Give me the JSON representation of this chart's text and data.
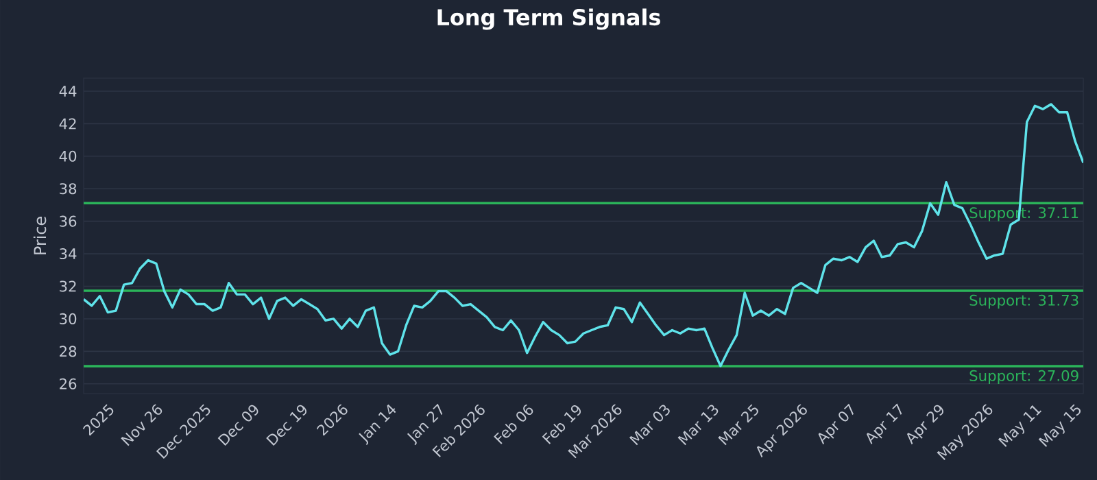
{
  "chart_data": {
    "type": "line",
    "title": "Long Term Signals",
    "ylabel": "Price",
    "categories": [
      null,
      null,
      null,
      "2025",
      null,
      null,
      null,
      null,
      null,
      "Nov 26",
      null,
      null,
      null,
      null,
      null,
      "Dec 2025",
      null,
      null,
      null,
      null,
      null,
      "Dec 09",
      null,
      null,
      null,
      null,
      null,
      "Dec 19",
      null,
      null,
      null,
      null,
      "2026",
      null,
      null,
      null,
      null,
      null,
      "Jan 14",
      null,
      null,
      null,
      null,
      null,
      "Jan 27",
      null,
      null,
      null,
      null,
      "Feb 2026",
      null,
      null,
      null,
      null,
      null,
      "Feb 06",
      null,
      null,
      null,
      null,
      null,
      "Feb 19",
      null,
      null,
      null,
      null,
      "Mar 2026",
      null,
      null,
      null,
      null,
      null,
      "Mar 03",
      null,
      null,
      null,
      null,
      null,
      "Mar 13",
      null,
      null,
      null,
      null,
      "Mar 25",
      null,
      null,
      null,
      null,
      null,
      "Apr 2026",
      null,
      null,
      null,
      null,
      null,
      "Apr 07",
      null,
      null,
      null,
      null,
      null,
      "Apr 17",
      null,
      null,
      null,
      null,
      "Apr 29",
      null,
      null,
      null,
      null,
      null,
      "May 2026",
      null,
      null,
      null,
      null,
      null,
      "May 11",
      null,
      null,
      null,
      null,
      "May 15",
      null
    ],
    "values": [
      31.2,
      30.8,
      31.4,
      30.4,
      30.5,
      32.1,
      32.2,
      33.1,
      33.6,
      33.4,
      31.7,
      30.7,
      31.8,
      31.5,
      30.9,
      30.9,
      30.5,
      30.7,
      32.2,
      31.5,
      31.5,
      30.9,
      31.3,
      30.0,
      31.1,
      31.3,
      30.8,
      31.2,
      30.9,
      30.6,
      29.9,
      30.0,
      29.4,
      30.0,
      29.5,
      30.5,
      30.7,
      28.5,
      27.8,
      28.0,
      29.6,
      30.8,
      30.7,
      31.1,
      31.7,
      31.7,
      31.3,
      30.8,
      30.9,
      30.5,
      30.1,
      29.5,
      29.3,
      29.9,
      29.3,
      27.9,
      28.9,
      29.8,
      29.3,
      29.0,
      28.5,
      28.6,
      29.1,
      29.3,
      29.5,
      29.6,
      30.7,
      30.6,
      29.8,
      31.0,
      30.3,
      29.6,
      29.0,
      29.3,
      29.1,
      29.4,
      29.3,
      29.4,
      28.2,
      27.1,
      28.1,
      29.0,
      31.6,
      30.2,
      30.5,
      30.2,
      30.6,
      30.3,
      31.9,
      32.2,
      31.9,
      31.6,
      33.3,
      33.7,
      33.6,
      33.8,
      33.5,
      34.4,
      34.8,
      33.8,
      33.9,
      34.6,
      34.7,
      34.4,
      35.4,
      37.1,
      36.4,
      38.4,
      37.0,
      36.8,
      35.8,
      34.7,
      33.7,
      33.9,
      34.0,
      35.8,
      36.1,
      42.1,
      43.1,
      42.9,
      43.2,
      42.7,
      42.7,
      40.9,
      39.6
    ],
    "color": "#5fe3ea",
    "ylim": [
      25.4,
      44.8
    ],
    "yticks": [
      26,
      28,
      30,
      32,
      34,
      36,
      38,
      40,
      42,
      44
    ],
    "grid": "y",
    "marker": "none",
    "line_style": "solid",
    "ref_lines": [
      {
        "axis": "y",
        "value": 37.11,
        "label": "Support: 37.11",
        "color": "#2bb45a"
      },
      {
        "axis": "y",
        "value": 31.73,
        "label": "Support: 31.73",
        "color": "#2bb45a"
      },
      {
        "axis": "y",
        "value": 27.09,
        "label": "Support: 27.09",
        "color": "#2bb45a"
      }
    ]
  }
}
